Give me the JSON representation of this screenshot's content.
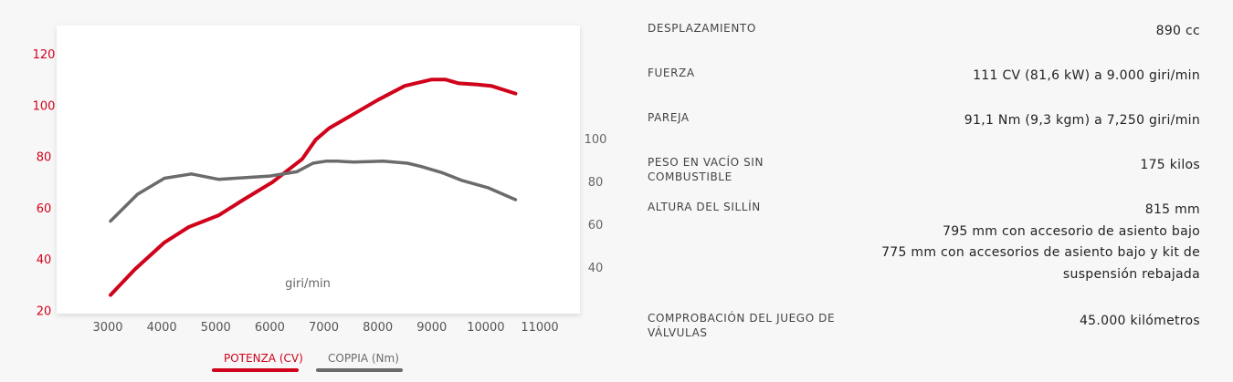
{
  "chart_data": {
    "type": "line",
    "title": "",
    "xlabel": "giri/min",
    "x_ticks": [
      "3000",
      "4000",
      "5000",
      "6000",
      "7000",
      "8000",
      "9000",
      "10000",
      "11000"
    ],
    "xlim": [
      2500,
      11300
    ],
    "y_left": {
      "ticks": [
        "20",
        "40",
        "60",
        "80",
        "100",
        "120"
      ],
      "ylim": [
        20,
        128
      ]
    },
    "y_right": {
      "ticks": [
        "40",
        "60",
        "80",
        "100"
      ],
      "ylim": [
        20,
        130
      ]
    },
    "grid": false,
    "legend_position": "bottom",
    "series": [
      {
        "name": "POTENZA (CV)",
        "color": "#d0021b",
        "axis": "left",
        "points": [
          [
            3050,
            26
          ],
          [
            3500,
            36
          ],
          [
            4050,
            46.5
          ],
          [
            4500,
            52.5
          ],
          [
            5050,
            57
          ],
          [
            5500,
            63
          ],
          [
            6050,
            70
          ],
          [
            6600,
            79
          ],
          [
            6850,
            86.5
          ],
          [
            7100,
            91
          ],
          [
            7550,
            96.5
          ],
          [
            8000,
            102
          ],
          [
            8500,
            107.5
          ],
          [
            9000,
            110
          ],
          [
            9250,
            110
          ],
          [
            9500,
            108.5
          ],
          [
            9850,
            108
          ],
          [
            10100,
            107.5
          ],
          [
            10550,
            104.5
          ]
        ]
      },
      {
        "name": "COPPIA (Nm)",
        "color": "#6b6b6b",
        "axis": "right",
        "points": [
          [
            3050,
            61.5
          ],
          [
            3550,
            74
          ],
          [
            4050,
            81.5
          ],
          [
            4550,
            83.5
          ],
          [
            5050,
            81
          ],
          [
            5500,
            81.7
          ],
          [
            6000,
            82.5
          ],
          [
            6500,
            84.5
          ],
          [
            6800,
            88.5
          ],
          [
            7050,
            89.5
          ],
          [
            7250,
            89.5
          ],
          [
            7550,
            89
          ],
          [
            8100,
            89.5
          ],
          [
            8550,
            88.5
          ],
          [
            8800,
            87
          ],
          [
            9200,
            84
          ],
          [
            9550,
            80.5
          ],
          [
            10050,
            77
          ],
          [
            10550,
            71.5
          ]
        ]
      }
    ]
  },
  "legend": [
    {
      "label": "POTENZA (CV)",
      "color": "#d0021b"
    },
    {
      "label": "COPPIA (Nm)",
      "color": "#6b6b6b"
    }
  ],
  "specs": [
    {
      "label": "DESPLAZAMIENTO",
      "values": [
        "890 cc"
      ]
    },
    {
      "label": "FUERZA",
      "values": [
        "111 CV (81,6 kW) a 9.000 giri/min"
      ]
    },
    {
      "label": "PAREJA",
      "values": [
        "91,1 Nm (9,3 kgm) a 7,250 giri/min"
      ]
    },
    {
      "label": "PESO EN VACÍO SIN COMBUSTIBLE",
      "values": [
        "175 kilos"
      ]
    },
    {
      "label": "ALTURA DEL SILLÍN",
      "values": [
        "815 mm",
        "795 mm con accesorio de asiento bajo",
        "775 mm con accesorios de asiento bajo y kit de suspensión rebajada"
      ]
    },
    {
      "label": "COMPROBACIÓN DEL JUEGO DE VÁLVULAS",
      "values": [
        "45.000 kilómetros"
      ]
    }
  ]
}
